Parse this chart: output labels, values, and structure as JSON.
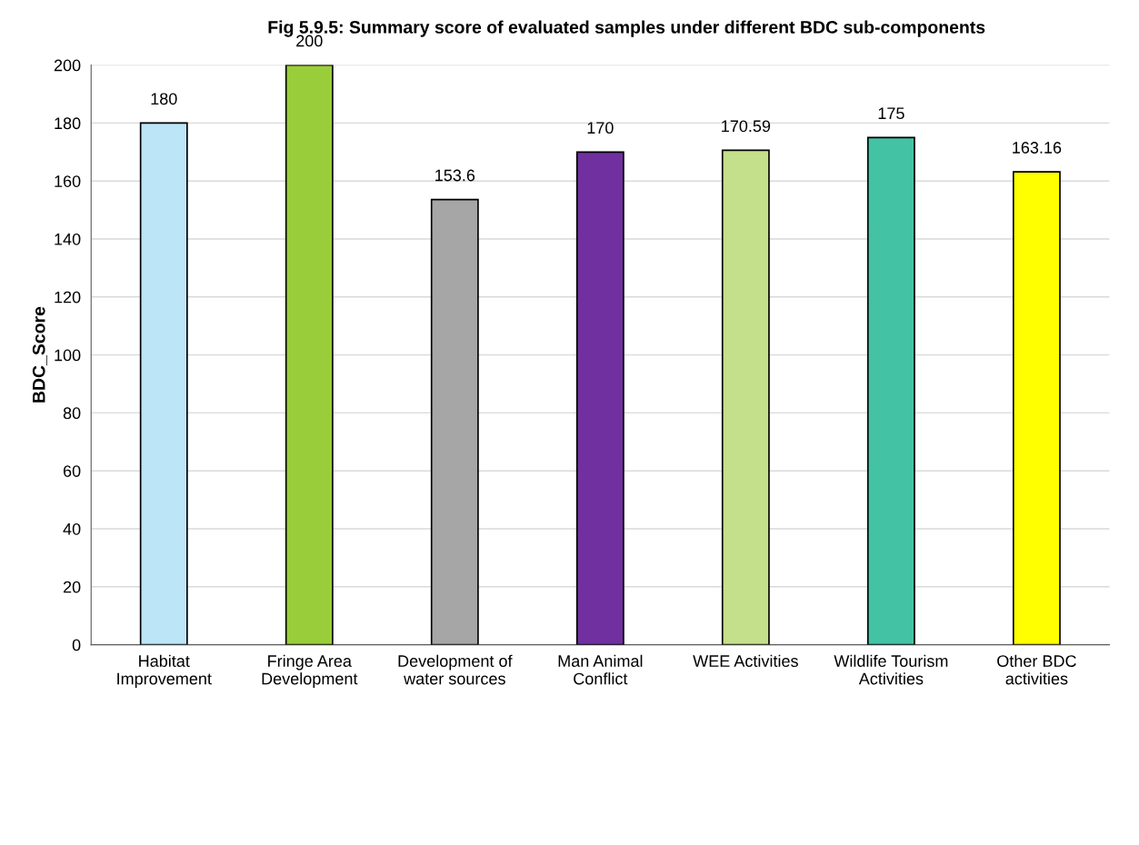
{
  "chart_data": {
    "type": "bar",
    "title": "Fig 5.9.5: Summary score of evaluated samples under different BDC sub-components",
    "ylabel": "BDC_Score",
    "categories": [
      "Habitat\nImprovement",
      "Fringe Area\nDevelopment",
      "Development of\nwater sources",
      "Man Animal\nConflict",
      "WEE Activities",
      "Wildlife Tourism\nActivities",
      "Other BDC\nactivities"
    ],
    "values": [
      180,
      200,
      153.6,
      170,
      170.59,
      175,
      163.16
    ],
    "colors": [
      "#bde5f8",
      "#9acd3a",
      "#a6a6a6",
      "#7030a0",
      "#c4e08a",
      "#44c2a4",
      "#ffff00"
    ],
    "ylim": [
      0,
      200
    ],
    "yticks": [
      0,
      20,
      40,
      60,
      80,
      100,
      120,
      140,
      160,
      180,
      200
    ],
    "grid": "y",
    "data_labels": true
  }
}
